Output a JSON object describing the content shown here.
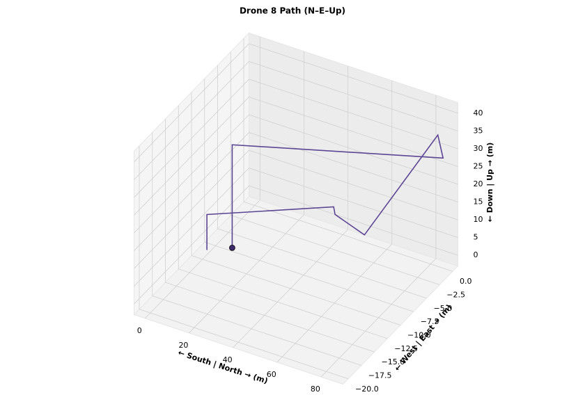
{
  "chart_data": {
    "type": "line3d",
    "title": "Drone 8 Path (N–E–Up)",
    "xlabel": "← South | North → (m)",
    "ylabel": "← West | East → (m)",
    "zlabel": "← Down | Up → (m)",
    "x": [
      23,
      23,
      88,
      88,
      57,
      46,
      43,
      2,
      2
    ],
    "y": [
      -14,
      -14,
      -1,
      -2,
      -3,
      -4,
      -3,
      -10,
      -10
    ],
    "z": [
      11,
      40,
      30,
      38,
      5,
      10,
      10,
      10,
      0
    ],
    "color": "#5c4594",
    "marker_color": "#3d2b6b",
    "xlim": [
      -5,
      90
    ],
    "ylim": [
      -21,
      1
    ],
    "zlim": [
      -3,
      43
    ],
    "xticks": [
      0,
      20,
      40,
      60,
      80
    ],
    "yticks": [
      {
        "value": 0,
        "label": "0.0"
      },
      {
        "value": -2.5,
        "label": "−2.5"
      },
      {
        "value": -5,
        "label": "−5.0"
      },
      {
        "value": -7.5,
        "label": "−7.5"
      },
      {
        "value": -10,
        "label": "−10.0"
      },
      {
        "value": -12.5,
        "label": "−12.5"
      },
      {
        "value": -15,
        "label": "−15.0"
      },
      {
        "value": -17.5,
        "label": "−17.5"
      },
      {
        "value": -20,
        "label": "−20.0"
      }
    ],
    "zticks": [
      0,
      5,
      10,
      15,
      20,
      25,
      30,
      35,
      40
    ],
    "grid": true
  }
}
